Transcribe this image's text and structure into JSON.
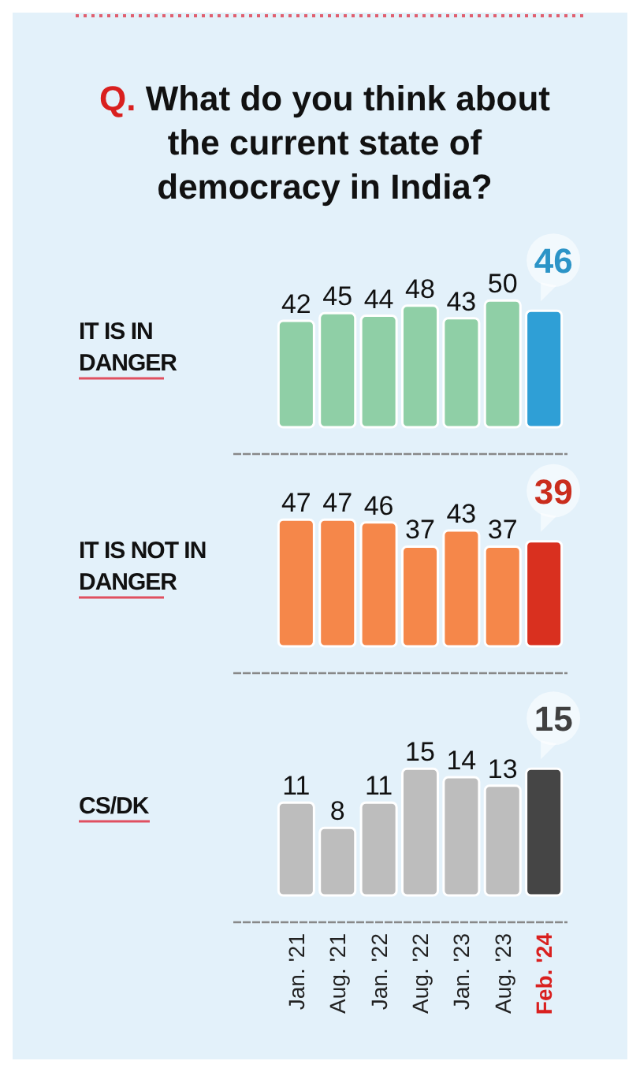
{
  "chart_data": [
    {
      "type": "bar",
      "title": "Q. What do you think about the current state of democracy in India?",
      "ylabel": "IT IS IN DANGER",
      "values": [
        42,
        45,
        44,
        48,
        43,
        50,
        46
      ],
      "colors": [
        "#8fcfa6",
        "#8fcfa6",
        "#8fcfa6",
        "#8fcfa6",
        "#8fcfa6",
        "#8fcfa6",
        "#2f9fd6"
      ],
      "data_labels": true,
      "tick_labels": false
    },
    {
      "type": "bar",
      "ylabel": "IT IS NOT IN DANGER",
      "values": [
        47,
        47,
        46,
        37,
        43,
        37,
        39
      ],
      "colors": [
        "#f5874a",
        "#f5874a",
        "#f5874a",
        "#f5874a",
        "#f5874a",
        "#f5874a",
        "#d9301f"
      ],
      "data_labels": true,
      "tick_labels": false
    },
    {
      "type": "bar",
      "ylabel": "CS/DK",
      "categories": [
        "Jan. '21",
        "Aug. '21",
        "Jan. '22",
        "Aug. '22",
        "Jan. '23",
        "Aug. '23",
        "Feb. '24"
      ],
      "values": [
        11,
        8,
        11,
        15,
        14,
        13,
        15
      ],
      "colors": [
        "#bdbdbd",
        "#bdbdbd",
        "#bdbdbd",
        "#bdbdbd",
        "#bdbdbd",
        "#bdbdbd",
        "#454545"
      ],
      "data_labels": true,
      "tick_labels": "x"
    }
  ]
}
